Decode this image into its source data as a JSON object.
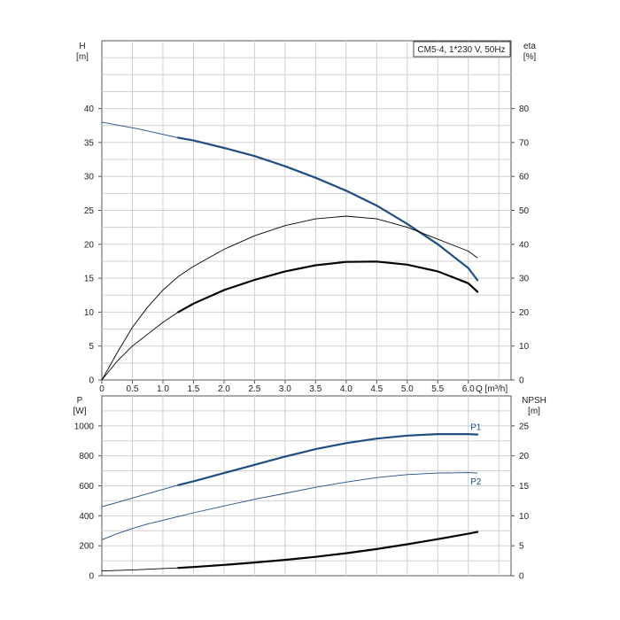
{
  "chart_data": [
    {
      "type": "line",
      "legend_box": "CM5-4, 1*230 V, 50Hz",
      "xlabel": "Q [m³/h]",
      "x_tick_labels": [
        "0",
        "0.5",
        "1.0",
        "1.5",
        "2.0",
        "2.5",
        "3.0",
        "3.5",
        "4.0",
        "4.5",
        "5.0",
        "5.5",
        "6.0"
      ],
      "xlim": [
        0,
        6.7
      ],
      "grid": true,
      "y_left": {
        "label_top": "H",
        "label_unit": "[m]",
        "ticks": [
          "0",
          "5",
          "10",
          "15",
          "20",
          "25",
          "30",
          "35",
          "40"
        ],
        "ylim": [
          0,
          50
        ]
      },
      "y_right": {
        "label_top": "eta",
        "label_unit": "[%]",
        "ticks": [
          "0",
          "10",
          "20",
          "30",
          "40",
          "50",
          "60",
          "70",
          "80"
        ],
        "ylim": [
          0,
          100
        ]
      },
      "series": [
        {
          "axis": "left",
          "color": "#1f4e82",
          "thin_x": [
            0,
            0.3,
            0.6,
            0.9,
            1.25
          ],
          "thin_y": [
            38.0,
            37.5,
            37.0,
            36.4,
            35.7
          ],
          "bold_x": [
            1.25,
            1.5,
            2.0,
            2.5,
            3.0,
            3.5,
            4.0,
            4.5,
            5.0,
            5.5,
            6.0,
            6.15
          ],
          "bold_y": [
            35.7,
            35.3,
            34.2,
            33.0,
            31.5,
            29.8,
            27.9,
            25.7,
            23.0,
            20.0,
            16.5,
            14.7
          ]
        },
        {
          "axis": "right",
          "color": "#000000",
          "thin_x": [
            0,
            0.25,
            0.5,
            0.75,
            1.0,
            1.25,
            1.5,
            2.0,
            2.5,
            3.0,
            3.5,
            4.0,
            4.5,
            5.0,
            5.5,
            6.0,
            6.15
          ],
          "thin_y": [
            0,
            8,
            15.5,
            21.5,
            26.5,
            30.5,
            33.5,
            38.5,
            42.5,
            45.5,
            47.5,
            48.3,
            47.5,
            45.0,
            41.5,
            38.0,
            36.0
          ]
        },
        {
          "axis": "right",
          "color": "#000000",
          "thin_x": [
            0,
            0.25,
            0.5,
            0.75,
            1.0,
            1.25
          ],
          "thin_y": [
            0,
            5.5,
            10.0,
            13.5,
            17.0,
            20.0
          ],
          "bold_x": [
            1.25,
            1.5,
            2.0,
            2.5,
            3.0,
            3.5,
            4.0,
            4.5,
            5.0,
            5.5,
            6.0,
            6.15
          ],
          "bold_y": [
            20.0,
            22.5,
            26.5,
            29.5,
            32.0,
            33.8,
            34.8,
            34.9,
            34.0,
            32.0,
            28.5,
            26.0
          ]
        }
      ]
    },
    {
      "type": "line",
      "xlim": [
        0,
        6.7
      ],
      "grid": true,
      "y_left": {
        "label_top": "P",
        "label_unit": "[W]",
        "ticks": [
          "0",
          "200",
          "400",
          "600",
          "800",
          "1000"
        ],
        "ylim": [
          0,
          1200
        ]
      },
      "y_right": {
        "label_top": "NPSH",
        "label_unit": "[m]",
        "ticks": [
          "0",
          "5",
          "10",
          "15",
          "20",
          "25"
        ],
        "ylim": [
          0,
          30
        ]
      },
      "series": [
        {
          "name": "P1",
          "axis": "left",
          "color": "#1f4e82",
          "thin_x": [
            0,
            0.3,
            0.6,
            0.9,
            1.25
          ],
          "thin_y": [
            460,
            495,
            530,
            565,
            605
          ],
          "bold_x": [
            1.25,
            1.5,
            2.0,
            2.5,
            3.0,
            3.5,
            4.0,
            4.5,
            5.0,
            5.5,
            6.0,
            6.15
          ],
          "bold_y": [
            605,
            630,
            685,
            740,
            795,
            845,
            885,
            915,
            935,
            945,
            945,
            942
          ]
        },
        {
          "name": "P2",
          "axis": "left",
          "color": "#1f4e82",
          "thin_x": [
            0,
            0.25,
            0.5,
            0.75,
            1.0,
            1.25,
            1.5,
            2.0,
            2.5,
            3.0,
            3.5,
            4.0,
            4.5,
            5.0,
            5.5,
            6.0,
            6.15
          ],
          "thin_y": [
            240,
            280,
            315,
            345,
            370,
            395,
            420,
            465,
            510,
            550,
            590,
            625,
            655,
            675,
            685,
            688,
            685
          ]
        },
        {
          "axis": "right",
          "color": "#000000",
          "thin_x": [
            0,
            0.3,
            0.6,
            0.9,
            1.25
          ],
          "thin_y": [
            0.8,
            0.9,
            1.0,
            1.15,
            1.3
          ],
          "bold_x": [
            1.25,
            1.5,
            2.0,
            2.5,
            3.0,
            3.5,
            4.0,
            4.5,
            5.0,
            5.5,
            6.0,
            6.15
          ],
          "bold_y": [
            1.3,
            1.45,
            1.8,
            2.2,
            2.65,
            3.15,
            3.75,
            4.45,
            5.25,
            6.1,
            7.0,
            7.3
          ]
        }
      ]
    }
  ]
}
